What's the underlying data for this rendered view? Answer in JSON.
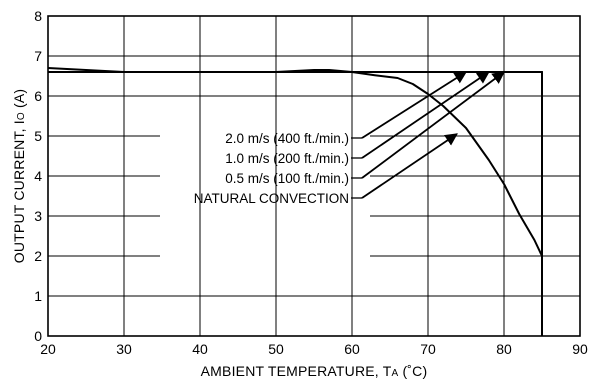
{
  "chart_data": {
    "type": "line",
    "title": "",
    "xlabel": {
      "main": "AMBIENT TEMPERATURE, T",
      "sub": "A",
      "unit": " (˚C)"
    },
    "ylabel": {
      "main": "OUTPUT CURRENT, I",
      "sub": "O",
      "unit": " (A)"
    },
    "xlim": [
      20,
      90
    ],
    "ylim": [
      0,
      8
    ],
    "x_ticks": [
      20,
      30,
      40,
      50,
      60,
      70,
      80,
      90
    ],
    "y_ticks": [
      0,
      1,
      2,
      3,
      4,
      5,
      6,
      7,
      8
    ],
    "grid": true,
    "series": [
      {
        "name": "2.0 m/s (400 ft./min.)",
        "x": [
          20,
          85,
          85
        ],
        "y": [
          6.6,
          6.6,
          0
        ]
      },
      {
        "name": "1.0 m/s (200 ft./min.)",
        "x": [
          20,
          85,
          85
        ],
        "y": [
          6.6,
          6.6,
          0
        ]
      },
      {
        "name": "0.5 m/s (100 ft./min.)",
        "x": [
          20,
          85,
          85
        ],
        "y": [
          6.6,
          6.6,
          0
        ]
      },
      {
        "name": "NATURAL CONVECTION",
        "x": [
          20,
          25,
          30,
          40,
          50,
          55,
          57,
          60,
          63,
          66,
          68,
          70,
          72,
          75,
          78,
          80,
          82,
          84,
          85
        ],
        "y": [
          6.7,
          6.65,
          6.6,
          6.6,
          6.6,
          6.65,
          6.65,
          6.6,
          6.52,
          6.45,
          6.3,
          6.05,
          5.75,
          5.2,
          4.4,
          3.8,
          3.05,
          2.4,
          2.0
        ]
      }
    ],
    "callouts": [
      {
        "text": "2.0 m/s (400 ft./min.)",
        "arrow_to": [
          75,
          6.6
        ]
      },
      {
        "text": "1.0 m/s (200 ft./min.)",
        "arrow_to": [
          78,
          6.6
        ]
      },
      {
        "text": "0.5 m/s (100 ft./min.)",
        "arrow_to": [
          80,
          6.6
        ]
      },
      {
        "text": "NATURAL CONVECTION",
        "arrow_to": [
          73.8,
          5.05
        ]
      }
    ]
  }
}
